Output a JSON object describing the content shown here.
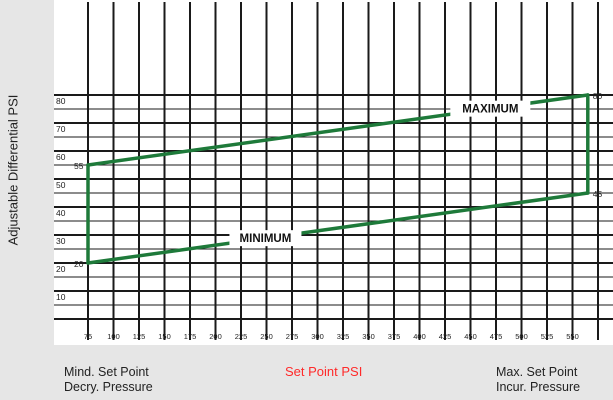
{
  "chart_data": {
    "type": "line",
    "title": "",
    "ylabel": "Adjustable Differential PSI",
    "xlabel": "Set Point PSI",
    "x_ticks": [
      75,
      100,
      125,
      150,
      175,
      200,
      225,
      250,
      275,
      300,
      325,
      350,
      375,
      400,
      425,
      450,
      475,
      500,
      525,
      550
    ],
    "y_ticks": [
      10,
      20,
      30,
      40,
      50,
      60,
      70,
      80
    ],
    "xlim": [
      75,
      575
    ],
    "ylim": [
      0,
      80
    ],
    "grid": true,
    "series": [
      {
        "name": "MAXIMUM",
        "x": [
          75,
          565
        ],
        "y": [
          55,
          80
        ],
        "color": "#1e7a3a"
      },
      {
        "name": "MINIMUM",
        "x": [
          75,
          565
        ],
        "y": [
          20,
          45
        ],
        "color": "#1e7a3a"
      }
    ],
    "bounds": [
      {
        "x": [
          75,
          75
        ],
        "y": [
          20,
          55
        ]
      },
      {
        "x": [
          565,
          565
        ],
        "y": [
          45,
          80
        ]
      }
    ],
    "point_labels": [
      {
        "text": "55",
        "x": 75,
        "y": 55
      },
      {
        "text": "20",
        "x": 75,
        "y": 20
      },
      {
        "text": "80",
        "x": 565,
        "y": 80
      },
      {
        "text": "45",
        "x": 565,
        "y": 45
      }
    ],
    "bottom_labels": {
      "left": [
        "Mind. Set Point",
        "Decry. Pressure"
      ],
      "center": "Set Point PSI",
      "right": [
        "Max. Set Point",
        "Incur. Pressure"
      ]
    }
  }
}
